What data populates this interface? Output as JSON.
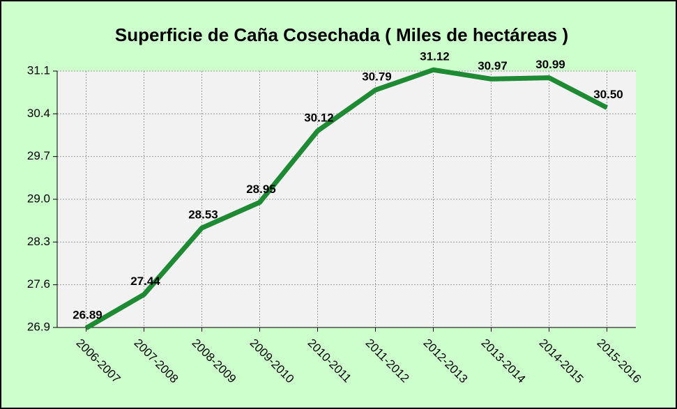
{
  "chart_data": {
    "type": "line",
    "title": "Superficie de Caña Cosechada ( Miles de hectáreas )",
    "categories": [
      "2006-2007",
      "2007-2008",
      "2008-2009",
      "2009-2010",
      "2010-2011",
      "2011-2012",
      "2012-2013",
      "2013-2014",
      "2014-2015",
      "2015-2016"
    ],
    "values": [
      26.89,
      27.44,
      28.53,
      28.95,
      30.12,
      30.79,
      31.12,
      30.97,
      30.99,
      30.5
    ],
    "value_labels": [
      "26.89",
      "27.44",
      "28.53",
      "28.95",
      "30.12",
      "30.79",
      "31.12",
      "30.97",
      "30.99",
      "30.50"
    ],
    "color": "#1e8a34",
    "ylim": [
      26.9,
      31.1
    ],
    "yticks": [
      26.9,
      27.6,
      28.3,
      {
        "value": 29,
        "label": "29.0"
      },
      29.7,
      30.4,
      31.1
    ],
    "grid": true
  }
}
